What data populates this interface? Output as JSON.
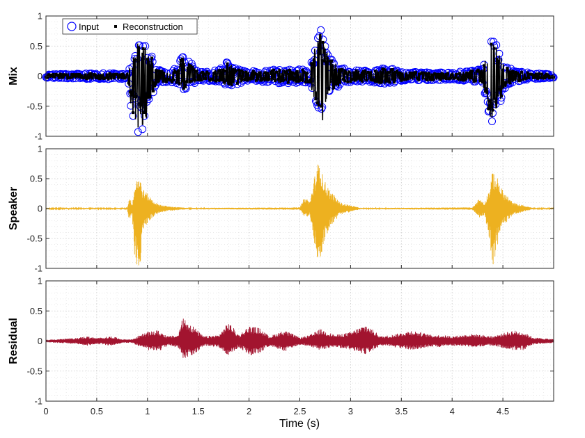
{
  "chart_data": [
    {
      "type": "scatter",
      "ylabel": "Mix",
      "xlim": [
        0,
        5
      ],
      "ylim": [
        -1,
        1
      ],
      "grid": "major-and-minor dotted",
      "legend": {
        "placement": "top-left",
        "entries": [
          {
            "name": "Input",
            "marker": "open-circle",
            "color": "#0000ff"
          },
          {
            "name": "Reconstruction",
            "marker": "filled-square",
            "color": "#000000"
          }
        ]
      },
      "envelope": {
        "description_units": "seconds vs amplitude (max/min of waveform)",
        "x": [
          0.0,
          0.2,
          0.5,
          0.8,
          0.85,
          0.9,
          0.95,
          1.0,
          1.05,
          1.1,
          1.2,
          1.3,
          1.35,
          1.4,
          1.5,
          1.6,
          1.75,
          1.8,
          1.85,
          2.0,
          2.3,
          2.6,
          2.65,
          2.7,
          2.75,
          2.8,
          2.9,
          3.0,
          3.2,
          3.35,
          3.5,
          4.0,
          4.3,
          4.35,
          4.4,
          4.45,
          4.5,
          4.6,
          4.8,
          5.0
        ],
        "upper": [
          0.03,
          0.04,
          0.05,
          0.05,
          0.35,
          0.6,
          0.57,
          0.5,
          0.3,
          0.12,
          0.1,
          0.15,
          0.42,
          0.3,
          0.08,
          0.08,
          0.15,
          0.3,
          0.15,
          0.08,
          0.12,
          0.12,
          0.55,
          0.88,
          0.55,
          0.3,
          0.15,
          0.1,
          0.1,
          0.15,
          0.08,
          0.06,
          0.12,
          0.45,
          0.7,
          0.55,
          0.25,
          0.1,
          0.05,
          0.03
        ],
        "lower": [
          -0.03,
          -0.04,
          -0.05,
          -0.05,
          -0.7,
          -1.0,
          -0.98,
          -0.7,
          -0.3,
          -0.12,
          -0.1,
          -0.15,
          -0.25,
          -0.2,
          -0.08,
          -0.08,
          -0.15,
          -0.2,
          -0.15,
          -0.08,
          -0.12,
          -0.12,
          -0.6,
          -0.98,
          -0.75,
          -0.3,
          -0.15,
          -0.1,
          -0.1,
          -0.15,
          -0.08,
          -0.06,
          -0.12,
          -0.6,
          -0.97,
          -0.7,
          -0.25,
          -0.1,
          -0.05,
          -0.03
        ]
      }
    },
    {
      "type": "line",
      "ylabel": "Speaker",
      "xlim": [
        0,
        5
      ],
      "ylim": [
        -1,
        1
      ],
      "color": "#EDB120",
      "grid": "major-and-minor dotted",
      "envelope": {
        "x": [
          0.0,
          0.8,
          0.82,
          0.85,
          0.87,
          0.9,
          0.93,
          0.95,
          1.0,
          1.05,
          1.1,
          1.2,
          1.4,
          2.5,
          2.55,
          2.6,
          2.65,
          2.7,
          2.72,
          2.75,
          2.8,
          2.9,
          3.1,
          4.2,
          4.27,
          4.32,
          4.37,
          4.4,
          4.45,
          4.5,
          4.6,
          4.8,
          5.0
        ],
        "upper": [
          0.01,
          0.01,
          0.2,
          0.08,
          0.35,
          0.6,
          0.5,
          0.35,
          0.25,
          0.15,
          0.08,
          0.04,
          0.01,
          0.02,
          0.2,
          0.12,
          0.58,
          0.88,
          0.6,
          0.45,
          0.3,
          0.1,
          0.01,
          0.02,
          0.18,
          0.1,
          0.35,
          0.65,
          0.5,
          0.3,
          0.1,
          0.01,
          0.01
        ],
        "lower": [
          -0.01,
          -0.01,
          -0.2,
          -0.1,
          -0.8,
          -0.98,
          -0.95,
          -0.4,
          -0.25,
          -0.15,
          -0.08,
          -0.04,
          -0.01,
          -0.02,
          -0.15,
          -0.12,
          -0.7,
          -0.98,
          -0.8,
          -0.5,
          -0.3,
          -0.1,
          -0.01,
          -0.02,
          -0.15,
          -0.1,
          -0.55,
          -0.98,
          -0.6,
          -0.3,
          -0.1,
          -0.01,
          -0.01
        ]
      }
    },
    {
      "type": "line",
      "ylabel": "Residual",
      "xlim": [
        0,
        5
      ],
      "ylim": [
        -1,
        1
      ],
      "color": "#A2142F",
      "grid": "major-and-minor dotted",
      "envelope": {
        "x": [
          0.0,
          0.3,
          0.4,
          0.5,
          0.65,
          0.75,
          0.85,
          0.95,
          1.0,
          1.1,
          1.2,
          1.3,
          1.35,
          1.45,
          1.55,
          1.7,
          1.8,
          1.9,
          2.0,
          2.1,
          2.2,
          2.35,
          2.5,
          2.6,
          2.7,
          2.85,
          3.0,
          3.15,
          3.3,
          3.4,
          3.6,
          3.8,
          3.9,
          4.0,
          4.2,
          4.4,
          4.6,
          4.7,
          4.8,
          5.0
        ],
        "upper": [
          0.02,
          0.05,
          0.08,
          0.05,
          0.08,
          0.03,
          0.03,
          0.12,
          0.15,
          0.18,
          0.08,
          0.1,
          0.4,
          0.25,
          0.08,
          0.1,
          0.32,
          0.1,
          0.25,
          0.22,
          0.08,
          0.18,
          0.06,
          0.1,
          0.2,
          0.1,
          0.15,
          0.28,
          0.08,
          0.1,
          0.18,
          0.1,
          0.1,
          0.08,
          0.12,
          0.08,
          0.18,
          0.15,
          0.06,
          0.03
        ],
        "lower": [
          -0.02,
          -0.05,
          -0.08,
          -0.05,
          -0.08,
          -0.03,
          -0.03,
          -0.12,
          -0.15,
          -0.18,
          -0.08,
          -0.1,
          -0.3,
          -0.25,
          -0.08,
          -0.1,
          -0.25,
          -0.1,
          -0.25,
          -0.22,
          -0.08,
          -0.18,
          -0.06,
          -0.1,
          -0.15,
          -0.1,
          -0.15,
          -0.22,
          -0.08,
          -0.1,
          -0.15,
          -0.1,
          -0.1,
          -0.08,
          -0.1,
          -0.08,
          -0.15,
          -0.15,
          -0.06,
          -0.03
        ]
      }
    }
  ],
  "xaxis": {
    "label": "Time (s)",
    "ticks": [
      "0",
      "0.5",
      "1",
      "1.5",
      "2",
      "2.5",
      "3",
      "3.5",
      "4",
      "4.5"
    ],
    "tick_values": [
      0,
      0.5,
      1,
      1.5,
      2,
      2.5,
      3,
      3.5,
      4,
      4.5
    ]
  },
  "yaxis": {
    "ticks": [
      "1",
      "0.5",
      "0",
      "-0.5",
      "-1"
    ],
    "tick_values": [
      1,
      0.5,
      0,
      -0.5,
      -1
    ]
  }
}
